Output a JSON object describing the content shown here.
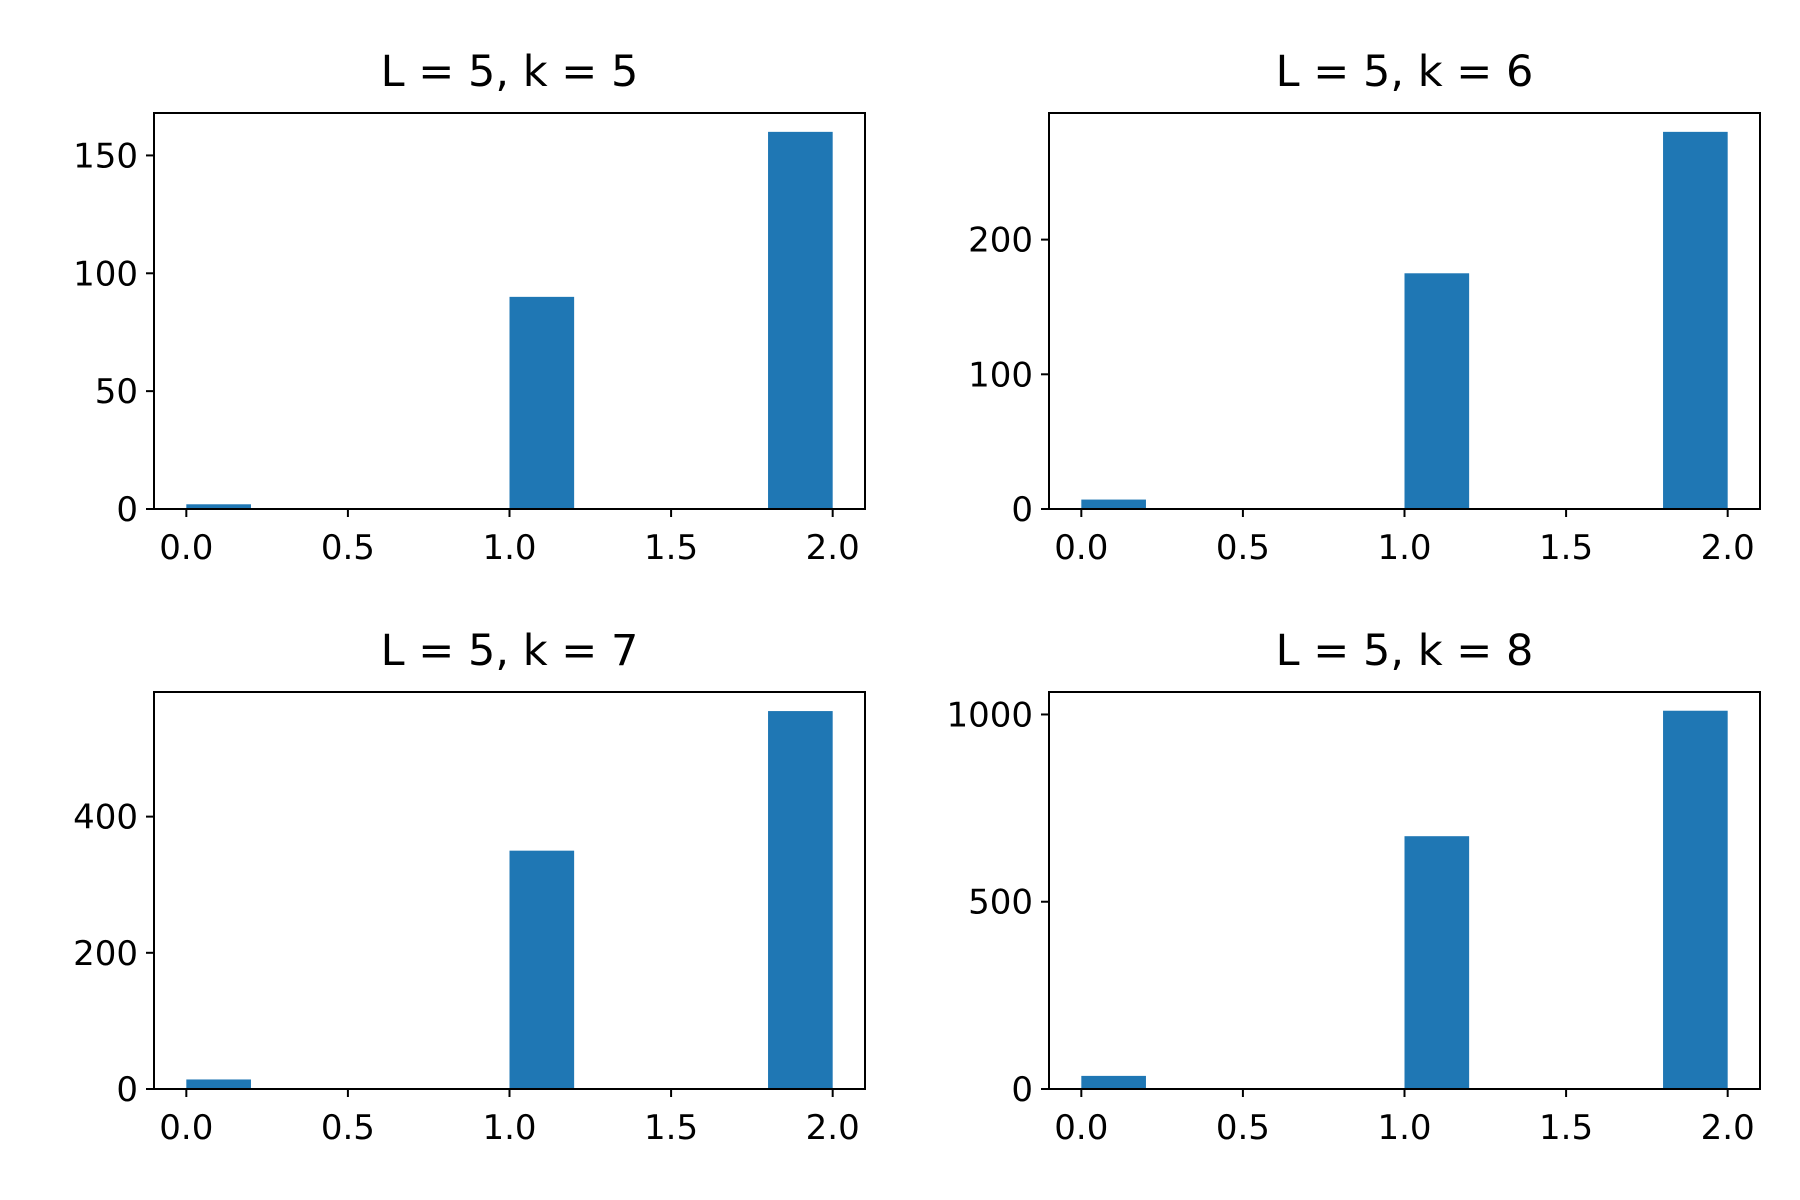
{
  "chart_data": [
    {
      "type": "bar",
      "title": "L = 5, k = 5",
      "xlabel": "",
      "ylabel": "",
      "xlim": [
        -0.1,
        2.1
      ],
      "ylim": [
        0,
        168
      ],
      "bar_width": 0.2,
      "bar_color": "#1f77b4",
      "grid": false,
      "x_ticks": [
        0.0,
        0.5,
        1.0,
        1.5,
        2.0
      ],
      "x_tick_labels": [
        "0.0",
        "0.5",
        "1.0",
        "1.5",
        "2.0"
      ],
      "y_ticks": [
        0,
        50,
        100,
        150
      ],
      "y_tick_labels": [
        "0",
        "50",
        "100",
        "150"
      ],
      "bins": [
        0.0,
        1.0,
        1.8
      ],
      "values": [
        2,
        90,
        160
      ]
    },
    {
      "type": "bar",
      "title": "L = 5, k = 6",
      "xlabel": "",
      "ylabel": "",
      "xlim": [
        -0.1,
        2.1
      ],
      "ylim": [
        0,
        294
      ],
      "bar_width": 0.2,
      "bar_color": "#1f77b4",
      "grid": false,
      "x_ticks": [
        0.0,
        0.5,
        1.0,
        1.5,
        2.0
      ],
      "x_tick_labels": [
        "0.0",
        "0.5",
        "1.0",
        "1.5",
        "2.0"
      ],
      "y_ticks": [
        0,
        100,
        200
      ],
      "y_tick_labels": [
        "0",
        "100",
        "200"
      ],
      "bins": [
        0.0,
        1.0,
        1.8
      ],
      "values": [
        7,
        175,
        280
      ]
    },
    {
      "type": "bar",
      "title": "L = 5, k = 7",
      "xlabel": "",
      "ylabel": "",
      "xlim": [
        -0.1,
        2.1
      ],
      "ylim": [
        0,
        583
      ],
      "bar_width": 0.2,
      "bar_color": "#1f77b4",
      "grid": false,
      "x_ticks": [
        0.0,
        0.5,
        1.0,
        1.5,
        2.0
      ],
      "x_tick_labels": [
        "0.0",
        "0.5",
        "1.0",
        "1.5",
        "2.0"
      ],
      "y_ticks": [
        0,
        200,
        400
      ],
      "y_tick_labels": [
        "0",
        "200",
        "400"
      ],
      "bins": [
        0.0,
        1.0,
        1.8
      ],
      "values": [
        14,
        350,
        555
      ]
    },
    {
      "type": "bar",
      "title": "L = 5, k = 8",
      "xlabel": "",
      "ylabel": "",
      "xlim": [
        -0.1,
        2.1
      ],
      "ylim": [
        0,
        1060
      ],
      "bar_width": 0.2,
      "bar_color": "#1f77b4",
      "grid": false,
      "x_ticks": [
        0.0,
        0.5,
        1.0,
        1.5,
        2.0
      ],
      "x_tick_labels": [
        "0.0",
        "0.5",
        "1.0",
        "1.5",
        "2.0"
      ],
      "y_ticks": [
        0,
        500,
        1000
      ],
      "y_tick_labels": [
        "0",
        "500",
        "1000"
      ],
      "bins": [
        0.0,
        1.0,
        1.8
      ],
      "values": [
        35,
        675,
        1010
      ]
    }
  ]
}
